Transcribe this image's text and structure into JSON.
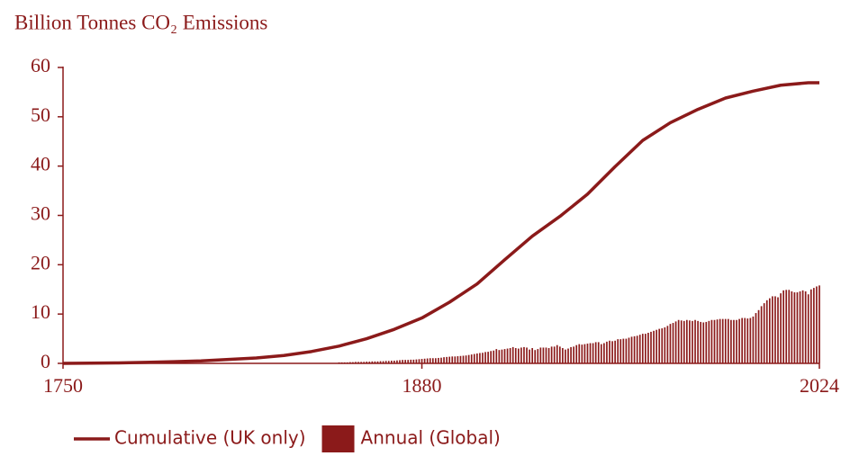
{
  "chart_data": {
    "type": "combo",
    "title": "Billion Tonnes CO₂ Emissions",
    "xlim": [
      1750,
      2024
    ],
    "xticks": [
      1750,
      1880,
      2024
    ],
    "ylim": [
      0,
      60
    ],
    "yticks": [
      0,
      10,
      20,
      30,
      40,
      50,
      60
    ],
    "grid": false,
    "legend": "bottom",
    "series": [
      {
        "name": "Cumulative (UK only)",
        "type": "line",
        "color": "#8b1a1a",
        "x": [
          1750,
          1760,
          1770,
          1780,
          1790,
          1800,
          1810,
          1820,
          1830,
          1840,
          1850,
          1860,
          1870,
          1880,
          1890,
          1900,
          1910,
          1920,
          1930,
          1940,
          1950,
          1960,
          1970,
          1980,
          1990,
          2000,
          2010,
          2020,
          2024
        ],
        "values": [
          0,
          0.05,
          0.1,
          0.2,
          0.35,
          0.5,
          0.8,
          1.1,
          1.6,
          2.4,
          3.5,
          5.0,
          6.9,
          9.2,
          12.4,
          16.1,
          21.0,
          25.8,
          29.8,
          34.3,
          39.9,
          45.2,
          48.8,
          51.5,
          53.8,
          55.2,
          56.4,
          56.9,
          56.9
        ]
      },
      {
        "name": "Annual (Global)",
        "type": "bar",
        "color": "#8b1a1a",
        "x": [
          1850,
          1851,
          1852,
          1853,
          1854,
          1855,
          1856,
          1857,
          1858,
          1859,
          1860,
          1861,
          1862,
          1863,
          1864,
          1865,
          1866,
          1867,
          1868,
          1869,
          1870,
          1871,
          1872,
          1873,
          1874,
          1875,
          1876,
          1877,
          1878,
          1879,
          1880,
          1881,
          1882,
          1883,
          1884,
          1885,
          1886,
          1887,
          1888,
          1889,
          1890,
          1891,
          1892,
          1893,
          1894,
          1895,
          1896,
          1897,
          1898,
          1899,
          1900,
          1901,
          1902,
          1903,
          1904,
          1905,
          1906,
          1907,
          1908,
          1909,
          1910,
          1911,
          1912,
          1913,
          1914,
          1915,
          1916,
          1917,
          1918,
          1919,
          1920,
          1921,
          1922,
          1923,
          1924,
          1925,
          1926,
          1927,
          1928,
          1929,
          1930,
          1931,
          1932,
          1933,
          1934,
          1935,
          1936,
          1937,
          1938,
          1939,
          1940,
          1941,
          1942,
          1943,
          1944,
          1945,
          1946,
          1947,
          1948,
          1949,
          1950,
          1951,
          1952,
          1953,
          1954,
          1955,
          1956,
          1957,
          1958,
          1959,
          1960,
          1961,
          1962,
          1963,
          1964,
          1965,
          1966,
          1967,
          1968,
          1969,
          1970,
          1971,
          1972,
          1973,
          1974,
          1975,
          1976,
          1977,
          1978,
          1979,
          1980,
          1981,
          1982,
          1983,
          1984,
          1985,
          1986,
          1987,
          1988,
          1989,
          1990,
          1991,
          1992,
          1993,
          1994,
          1995,
          1996,
          1997,
          1998,
          1999,
          2000,
          2001,
          2002,
          2003,
          2004,
          2005,
          2006,
          2007,
          2008,
          2009,
          2010,
          2011,
          2012,
          2013,
          2014,
          2015,
          2016,
          2017,
          2018,
          2019,
          2020,
          2021,
          2022,
          2023,
          2024
        ],
        "values": [
          0.2,
          0.2,
          0.2,
          0.2,
          0.25,
          0.25,
          0.3,
          0.3,
          0.3,
          0.3,
          0.35,
          0.35,
          0.4,
          0.4,
          0.4,
          0.45,
          0.45,
          0.5,
          0.5,
          0.55,
          0.55,
          0.6,
          0.65,
          0.7,
          0.7,
          0.7,
          0.75,
          0.75,
          0.8,
          0.85,
          0.9,
          0.95,
          1.0,
          1.05,
          1.05,
          1.05,
          1.1,
          1.15,
          1.25,
          1.3,
          1.35,
          1.4,
          1.4,
          1.45,
          1.5,
          1.55,
          1.6,
          1.7,
          1.8,
          1.9,
          2.0,
          2.1,
          2.15,
          2.3,
          2.35,
          2.5,
          2.6,
          2.9,
          2.7,
          2.8,
          2.9,
          3.0,
          3.1,
          3.3,
          3.1,
          3.0,
          3.2,
          3.3,
          3.2,
          2.8,
          3.1,
          2.7,
          2.9,
          3.2,
          3.2,
          3.2,
          3.1,
          3.4,
          3.4,
          3.7,
          3.4,
          3.1,
          2.8,
          3.0,
          3.3,
          3.4,
          3.7,
          3.9,
          3.8,
          3.9,
          4.0,
          4.1,
          4.1,
          4.3,
          4.3,
          3.9,
          4.1,
          4.4,
          4.6,
          4.5,
          4.6,
          4.9,
          4.9,
          5.0,
          5.0,
          5.2,
          5.4,
          5.5,
          5.6,
          5.8,
          6.0,
          6.0,
          6.2,
          6.4,
          6.6,
          6.8,
          7.0,
          7.1,
          7.3,
          7.6,
          8.0,
          8.2,
          8.5,
          8.8,
          8.7,
          8.6,
          8.8,
          8.7,
          8.6,
          8.8,
          8.6,
          8.4,
          8.3,
          8.4,
          8.6,
          8.8,
          8.8,
          8.9,
          9.0,
          9.0,
          9.0,
          9.0,
          8.8,
          8.8,
          8.8,
          9.0,
          9.2,
          9.2,
          9.1,
          9.2,
          9.5,
          10.2,
          10.8,
          11.6,
          12.2,
          12.8,
          13.2,
          13.6,
          13.6,
          13.4,
          14.2,
          14.8,
          14.9,
          14.9,
          14.6,
          14.4,
          14.4,
          14.6,
          14.8,
          14.6,
          14.0,
          15.0,
          15.3,
          15.6,
          15.8
        ]
      }
    ]
  }
}
